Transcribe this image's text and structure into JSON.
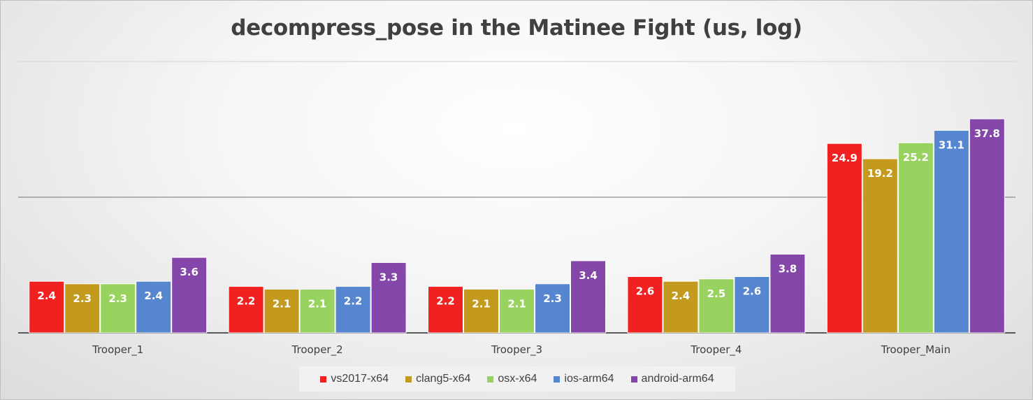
{
  "chart_data": {
    "type": "bar",
    "title": "decompress_pose in the Matinee Fight (us, log)",
    "categories": [
      "Trooper_1",
      "Trooper_2",
      "Trooper_3",
      "Trooper_4",
      "Trooper_Main"
    ],
    "series": [
      {
        "name": "vs2017-x64",
        "color": "#f22121",
        "values": [
          2.4,
          2.2,
          2.2,
          2.6,
          24.9
        ]
      },
      {
        "name": "clang5-x64",
        "color": "#c49a1e",
        "values": [
          2.3,
          2.1,
          2.1,
          2.4,
          19.2
        ]
      },
      {
        "name": "osx-x64",
        "color": "#99d35f",
        "values": [
          2.3,
          2.1,
          2.1,
          2.5,
          25.2
        ]
      },
      {
        "name": "ios-arm64",
        "color": "#5586cf",
        "values": [
          2.4,
          2.2,
          2.3,
          2.6,
          31.1
        ]
      },
      {
        "name": "android-arm64",
        "color": "#8446a8",
        "values": [
          3.6,
          3.3,
          3.4,
          3.8,
          37.8
        ]
      }
    ],
    "y_scale": "log",
    "ylim": [
      1,
      100
    ],
    "xlabel": "",
    "ylabel": "",
    "grid": true,
    "legend_position": "bottom",
    "data_labels": true
  }
}
